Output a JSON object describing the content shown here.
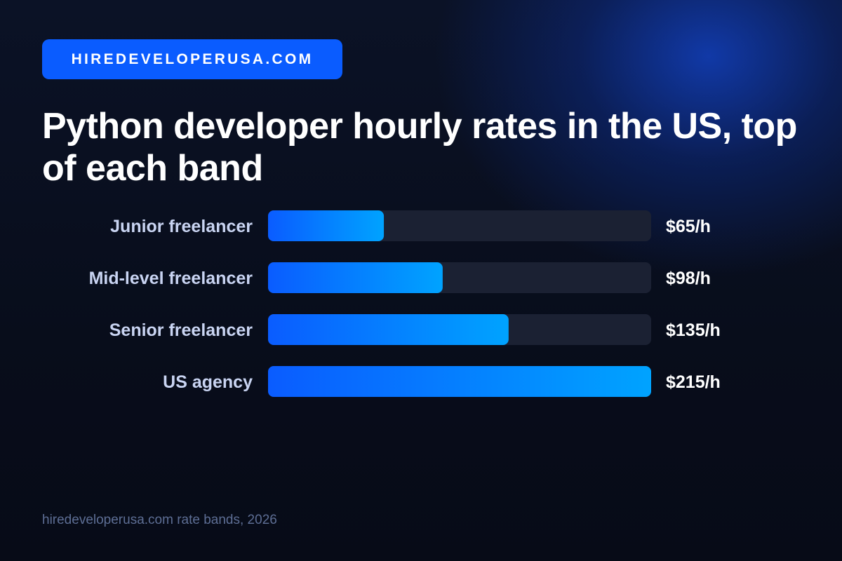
{
  "brand": {
    "label": "HIREDEVELOPERUSA.COM"
  },
  "title": "Python developer hourly rates in the US, top of each band",
  "source": "hiredeveloperusa.com rate bands, 2026",
  "colors": {
    "background": "#0a0f1e",
    "brand_badge": "#0a5cff",
    "bar_start": "#0a5cff",
    "bar_end": "#00a3ff",
    "track": "#1b2133",
    "category_text": "#c9d4f2",
    "value_text": "#ffffff"
  },
  "chart_data": {
    "type": "bar",
    "orientation": "horizontal",
    "categories": [
      "Junior freelancer",
      "Mid-level freelancer",
      "Senior freelancer",
      "US agency"
    ],
    "values": [
      65,
      98,
      135,
      215
    ],
    "value_labels": [
      "$65/h",
      "$98/h",
      "$135/h",
      "$215/h"
    ],
    "xlim": [
      0,
      215
    ],
    "grid": false,
    "legend": "none"
  }
}
